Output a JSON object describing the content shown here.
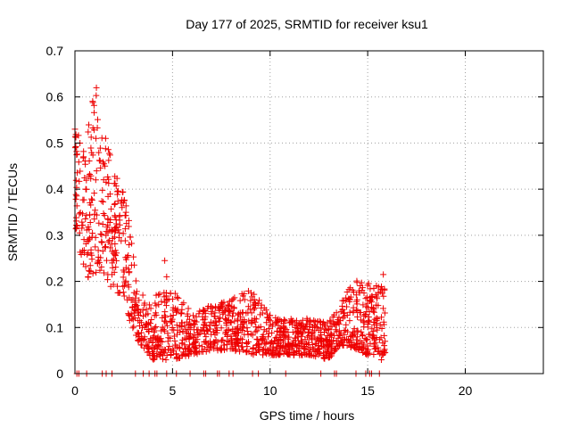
{
  "chart_data": {
    "type": "scatter",
    "title": "Day 177 of 2025, SRMTID for receiver ksu1",
    "xlabel": "GPS time / hours",
    "ylabel": "SRMTID / TECUs",
    "xlim": [
      0,
      24
    ],
    "ylim": [
      0,
      0.7
    ],
    "xticks": [
      0,
      5,
      10,
      15,
      20
    ],
    "xtick_labels": [
      "0",
      "5",
      "10",
      "15",
      "20"
    ],
    "yticks": [
      0,
      0.1,
      0.2,
      0.3,
      0.4,
      0.5,
      0.6,
      0.7
    ],
    "ytick_labels": [
      "0",
      "0.1",
      "0.2",
      "0.3",
      "0.4",
      "0.5",
      "0.6",
      "0.7"
    ],
    "grid": true,
    "marker": "+",
    "color": "#ee0000",
    "series": [
      {
        "name": "SRMTID",
        "envelope": [
          {
            "x": 0.0,
            "lo": 0.3,
            "hi": 0.53
          },
          {
            "x": 0.5,
            "lo": 0.2,
            "hi": 0.5
          },
          {
            "x": 1.0,
            "lo": 0.22,
            "hi": 0.62
          },
          {
            "x": 1.5,
            "lo": 0.2,
            "hi": 0.53
          },
          {
            "x": 2.0,
            "lo": 0.18,
            "hi": 0.45
          },
          {
            "x": 2.5,
            "lo": 0.16,
            "hi": 0.4
          },
          {
            "x": 2.9,
            "lo": 0.1,
            "hi": 0.3
          },
          {
            "x": 3.2,
            "lo": 0.07,
            "hi": 0.18
          },
          {
            "x": 4.0,
            "lo": 0.03,
            "hi": 0.17
          },
          {
            "x": 5.0,
            "lo": 0.03,
            "hi": 0.19
          },
          {
            "x": 6.0,
            "lo": 0.04,
            "hi": 0.13
          },
          {
            "x": 7.0,
            "lo": 0.05,
            "hi": 0.15
          },
          {
            "x": 8.0,
            "lo": 0.05,
            "hi": 0.16
          },
          {
            "x": 9.0,
            "lo": 0.04,
            "hi": 0.19
          },
          {
            "x": 10.0,
            "lo": 0.04,
            "hi": 0.13
          },
          {
            "x": 11.0,
            "lo": 0.04,
            "hi": 0.12
          },
          {
            "x": 12.0,
            "lo": 0.04,
            "hi": 0.12
          },
          {
            "x": 13.0,
            "lo": 0.03,
            "hi": 0.11
          },
          {
            "x": 13.5,
            "lo": 0.06,
            "hi": 0.15
          },
          {
            "x": 14.0,
            "lo": 0.06,
            "hi": 0.18
          },
          {
            "x": 14.5,
            "lo": 0.05,
            "hi": 0.21
          },
          {
            "x": 15.0,
            "lo": 0.04,
            "hi": 0.2
          },
          {
            "x": 15.5,
            "lo": 0.04,
            "hi": 0.2
          },
          {
            "x": 15.9,
            "lo": 0.04,
            "hi": 0.21
          }
        ],
        "outliers": [
          {
            "x": 0.0,
            "y": 0.53
          },
          {
            "x": 1.1,
            "y": 0.62
          },
          {
            "x": 4.6,
            "y": 0.245
          },
          {
            "x": 4.7,
            "y": 0.21
          },
          {
            "x": 15.8,
            "y": 0.215
          },
          {
            "x": 15.7,
            "y": 0.03
          }
        ],
        "zero_points_x": [
          0.1,
          0.2,
          0.6,
          1.4,
          1.6,
          1.9,
          3.1,
          3.5,
          3.8,
          4.1,
          4.2,
          4.7,
          5.2,
          5.9,
          6.6,
          6.7,
          7.3,
          7.4,
          7.9,
          8.1,
          9.1,
          9.4,
          10.8,
          12.6,
          13.3,
          13.4,
          14.4,
          14.9,
          15.1,
          15.2,
          15.6
        ]
      }
    ]
  }
}
